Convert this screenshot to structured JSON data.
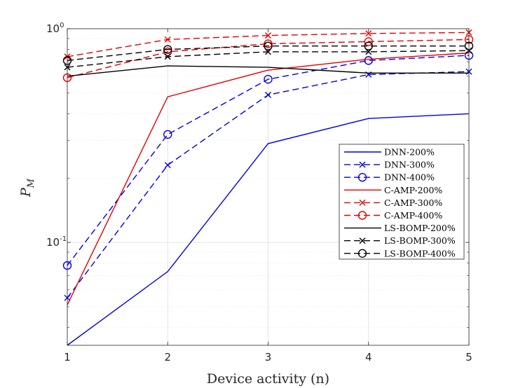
{
  "chart_data": {
    "type": "line",
    "x_scale": "linear",
    "y_scale": "log",
    "xlabel": "Device activity (n)",
    "ylabel": {
      "base": "P",
      "subscript": "M"
    },
    "xlim": [
      1,
      5
    ],
    "ylim": [
      0.033,
      1.0
    ],
    "x_ticks": [
      1,
      2,
      3,
      4,
      5
    ],
    "x_tick_labels": [
      "1",
      "2",
      "3",
      "4",
      "5"
    ],
    "y_major_ticks": [
      0.1,
      1.0
    ],
    "y_tick_labels": [
      {
        "value": 0.1,
        "base": "10",
        "exp": "-1"
      },
      {
        "value": 1.0,
        "base": "10",
        "exp": "0"
      }
    ],
    "y_minor_ticks": [
      0.04,
      0.05,
      0.06,
      0.07,
      0.08,
      0.09,
      0.2,
      0.3,
      0.4,
      0.5,
      0.6,
      0.7,
      0.8,
      0.9
    ],
    "grid": true,
    "legend_position": "right",
    "x": [
      1,
      2,
      3,
      4,
      5
    ],
    "series": [
      {
        "name": "DNN-200%",
        "color": "#0000e6",
        "dash": "solid",
        "marker": "none",
        "values": [
          0.033,
          0.073,
          0.29,
          0.38,
          0.4
        ]
      },
      {
        "name": "DNN-300%",
        "color": "#0000e6",
        "dash": "dashed",
        "marker": "x",
        "values": [
          0.055,
          0.23,
          0.49,
          0.61,
          0.63
        ]
      },
      {
        "name": "DNN-400%",
        "color": "#0000e6",
        "dash": "dashed",
        "marker": "circle",
        "values": [
          0.078,
          0.32,
          0.58,
          0.71,
          0.75
        ]
      },
      {
        "name": "C-AMP-200%",
        "color": "#e60000",
        "dash": "solid",
        "marker": "none",
        "values": [
          0.051,
          0.48,
          0.64,
          0.72,
          0.77
        ]
      },
      {
        "name": "C-AMP-300%",
        "color": "#e60000",
        "dash": "dashed",
        "marker": "x",
        "values": [
          0.74,
          0.89,
          0.93,
          0.95,
          0.96
        ]
      },
      {
        "name": "C-AMP-400%",
        "color": "#e60000",
        "dash": "dashed",
        "marker": "circle",
        "values": [
          0.59,
          0.78,
          0.85,
          0.87,
          0.89
        ]
      },
      {
        "name": "LS-BOMP-200%",
        "color": "#000000",
        "dash": "solid",
        "marker": "none",
        "values": [
          0.6,
          0.67,
          0.66,
          0.62,
          0.62
        ]
      },
      {
        "name": "LS-BOMP-300%",
        "color": "#000000",
        "dash": "dashed",
        "marker": "x",
        "values": [
          0.66,
          0.74,
          0.78,
          0.78,
          0.79
        ]
      },
      {
        "name": "LS-BOMP-400%",
        "color": "#000000",
        "dash": "dashed",
        "marker": "circle",
        "values": [
          0.71,
          0.8,
          0.83,
          0.83,
          0.83
        ]
      }
    ]
  }
}
